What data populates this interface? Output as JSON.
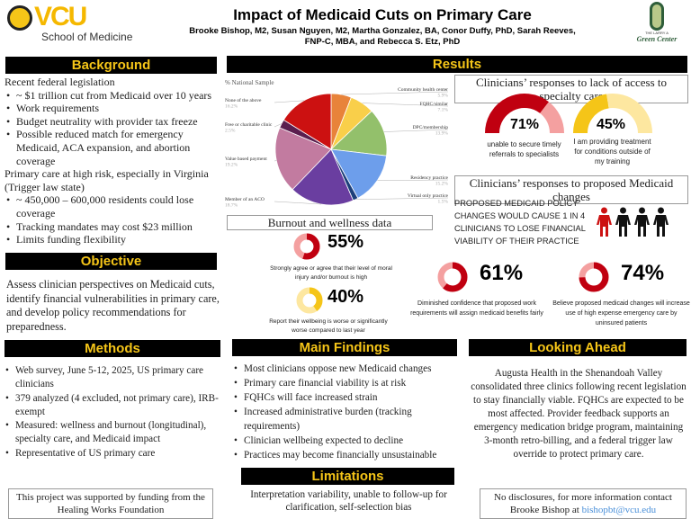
{
  "header": {
    "title": "Impact of Medicaid Cuts on Primary Care",
    "authors_line1": "Brooke Bishop, M2, Susan Nguyen, M2, Martha Gonzalez, BA, Conor Duffy, PhD, Sarah Reeves,",
    "authors_line2": "FNP-C, MBA, and Rebecca S. Etz, PhD",
    "vcu_logo": "VCU",
    "vcu_sub": "School of Medicine",
    "green_logo_line1": "THE LARRY A",
    "green_logo_line2": "Green Center"
  },
  "background": {
    "title": "Background",
    "intro1": "Recent federal legislation",
    "items1": [
      "~ $1 trillion cut from Medicaid over 10 years",
      "Work requirements",
      "Budget neutrality with provider tax freeze",
      "Possible reduced match for emergency Medicaid, ACA expansion, and abortion coverage"
    ],
    "intro2": "Primary care at high risk, especially in Virginia (Trigger law state)",
    "items2": [
      "~ 450,000 – 600,000 residents could lose coverage",
      "Tracking mandates may cost $23 million",
      "Limits funding flexibility"
    ]
  },
  "objective": {
    "title": "Objective",
    "text": "Assess clinician perspectives on Medicaid cuts, identify financial vulnerabilities in primary care, and develop policy recommendations for preparedness."
  },
  "results": {
    "title": "Results",
    "chart_data": {
      "type": "pie",
      "title": "% National Sample",
      "categories": [
        "Community health center",
        "FQHC/similar",
        "DPC/membership",
        "Residency practice",
        "Virtual only practice",
        "Member of an ACO",
        "Value based payment",
        "Free or charitable clinic",
        "None of the above"
      ],
      "values": [
        5.9,
        7.1,
        13.9,
        15.2,
        1.5,
        18.7,
        19.2,
        2.5,
        16.2
      ],
      "labels": [
        "5.9%",
        "7.1%",
        "13.9%",
        "15.2%",
        "1.5%",
        "18.7%",
        "19.2%",
        "2.5%",
        "16.2%"
      ],
      "colors": [
        "#e8833a",
        "#f9cf4a",
        "#93c06b",
        "#6d9eeb",
        "#1c3f7a",
        "#6a3ea0",
        "#c27ba0",
        "#5a1e4e",
        "#cc1111"
      ]
    },
    "specialty": {
      "title": "Clinicians’ responses to lack of access to specialty care",
      "gauges": [
        {
          "value": 71,
          "label": "71%",
          "caption": "unable to secure timely referrals to specialists",
          "color": "#c00010",
          "bg": "#f4a0a0"
        },
        {
          "value": 45,
          "label": "45%",
          "caption": "I am providing treatment for conditions outside of my training",
          "color": "#f5c518",
          "bg": "#fde7a0"
        }
      ]
    },
    "medicaid": {
      "title": "Clinicians’ responses to proposed Medicaid changes",
      "statement": "PROPOSED MEDICAID POLICY CHANGES WOULD CAUSE 1 IN 4 CLINICIANS TO LOSE FINANCIAL VIABILITY OF THEIR PRACTICE",
      "people_highlighted": 1,
      "people_total": 4,
      "donuts": [
        {
          "value": 61,
          "label": "61%",
          "caption": "Diminished confidence that proposed work requirements will assign medicaid benefits fairly"
        },
        {
          "value": 74,
          "label": "74%",
          "caption": "Believe proposed medicaid changes will increase use of high expense emergency care by uninsured patients"
        }
      ]
    },
    "burnout": {
      "title": "Burnout and wellness data",
      "donuts": [
        {
          "value": 55,
          "label": "55%",
          "caption": "Strongly agree or agree that their level of moral injury and/or burnout is high",
          "color": "#c00010",
          "bg": "#f4a0a0"
        },
        {
          "value": 40,
          "label": "40%",
          "caption": "Report their wellbeing is worse or significantly worse compared to last year",
          "color": "#f5c518",
          "bg": "#fde7a0"
        }
      ]
    }
  },
  "methods": {
    "title": "Methods",
    "items": [
      "Web survey, June 5-12, 2025, US primary care clinicians",
      "379 analyzed (4 excluded, not primary care), IRB-exempt",
      "Measured: wellness and burnout (longitudinal), specialty care, and Medicaid impact",
      "Representative of US primary care"
    ],
    "funding": "This project was supported by funding from the Healing Works Foundation"
  },
  "findings": {
    "title": "Main Findings",
    "items": [
      "Most clinicians oppose new Medicaid changes",
      "Primary care financial viability is at risk",
      "FQHCs will face increased strain",
      "Increased administrative burden (tracking requirements)",
      "Clinician wellbeing expected to decline",
      "Practices may become financially unsustainable"
    ]
  },
  "limitations": {
    "title": "Limitations",
    "text": "Interpretation variability, unable to follow-up for clarification, self-selection bias"
  },
  "ahead": {
    "title": "Looking Ahead",
    "text": "Augusta Health in the Shenandoah Valley consolidated three clinics following recent legislation to stay financially viable. FQHCs are expected to be most affected. Provider feedback supports an emergency medication bridge program, maintaining 3-month retro-billing, and a federal trigger law override to protect primary care.",
    "contact": "No disclosures, for more information contact Brooke Bishop at",
    "email": "bishopbt@vcu.edu"
  }
}
